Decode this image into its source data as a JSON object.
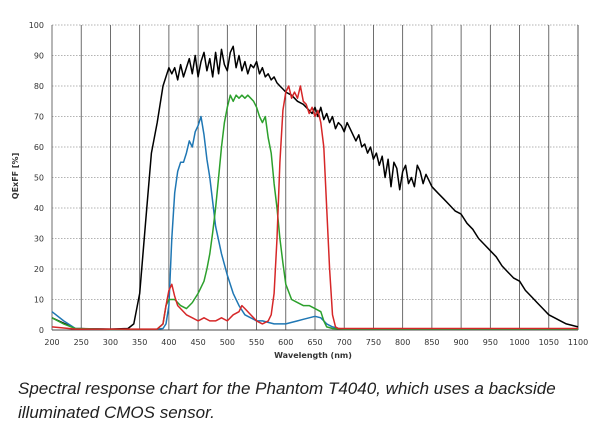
{
  "chart_data": {
    "type": "line",
    "title": "",
    "xlabel": "Wavelength (nm)",
    "ylabel": "QExFF [%]",
    "xlim": [
      200,
      1100
    ],
    "ylim": [
      0,
      100
    ],
    "x_ticks": [
      "200",
      "250",
      "300",
      "350",
      "400",
      "450",
      "500",
      "550",
      "600",
      "650",
      "700",
      "750",
      "800",
      "850",
      "900",
      "950",
      "1000",
      "1050",
      "1100"
    ],
    "y_ticks": [
      "0",
      "10",
      "20",
      "30",
      "40",
      "50",
      "60",
      "70",
      "80",
      "90",
      "100"
    ],
    "grid": true,
    "legend": "none",
    "series": [
      {
        "color": "#000000",
        "points": [
          [
            200,
            4
          ],
          [
            240,
            0.5
          ],
          [
            300,
            0.3
          ],
          [
            330,
            0.5
          ],
          [
            340,
            2
          ],
          [
            350,
            12
          ],
          [
            360,
            35
          ],
          [
            370,
            58
          ],
          [
            380,
            68
          ],
          [
            390,
            80
          ],
          [
            400,
            86
          ],
          [
            405,
            84
          ],
          [
            410,
            86
          ],
          [
            415,
            82
          ],
          [
            420,
            87
          ],
          [
            425,
            83
          ],
          [
            430,
            86
          ],
          [
            435,
            89
          ],
          [
            440,
            84
          ],
          [
            445,
            90
          ],
          [
            450,
            83
          ],
          [
            455,
            88
          ],
          [
            460,
            91
          ],
          [
            465,
            85
          ],
          [
            470,
            89
          ],
          [
            475,
            83
          ],
          [
            480,
            91
          ],
          [
            485,
            84
          ],
          [
            490,
            92
          ],
          [
            495,
            87
          ],
          [
            500,
            85
          ],
          [
            505,
            91
          ],
          [
            510,
            93
          ],
          [
            515,
            86
          ],
          [
            520,
            90
          ],
          [
            525,
            85
          ],
          [
            530,
            88
          ],
          [
            535,
            84
          ],
          [
            540,
            87
          ],
          [
            545,
            86
          ],
          [
            550,
            88
          ],
          [
            555,
            84
          ],
          [
            560,
            86
          ],
          [
            565,
            83
          ],
          [
            570,
            84
          ],
          [
            575,
            82
          ],
          [
            580,
            83
          ],
          [
            585,
            81
          ],
          [
            590,
            80
          ],
          [
            595,
            79
          ],
          [
            600,
            78
          ],
          [
            610,
            77
          ],
          [
            620,
            75
          ],
          [
            630,
            74
          ],
          [
            640,
            72
          ],
          [
            645,
            71
          ],
          [
            650,
            73
          ],
          [
            655,
            70
          ],
          [
            660,
            73
          ],
          [
            665,
            69
          ],
          [
            670,
            71
          ],
          [
            675,
            68
          ],
          [
            680,
            70
          ],
          [
            685,
            66
          ],
          [
            690,
            68
          ],
          [
            695,
            67
          ],
          [
            700,
            65
          ],
          [
            705,
            68
          ],
          [
            710,
            66
          ],
          [
            720,
            62
          ],
          [
            725,
            64
          ],
          [
            730,
            60
          ],
          [
            735,
            61
          ],
          [
            740,
            58
          ],
          [
            745,
            60
          ],
          [
            750,
            56
          ],
          [
            755,
            58
          ],
          [
            760,
            54
          ],
          [
            765,
            57
          ],
          [
            770,
            50
          ],
          [
            775,
            56
          ],
          [
            780,
            47
          ],
          [
            785,
            55
          ],
          [
            790,
            53
          ],
          [
            795,
            46
          ],
          [
            800,
            52
          ],
          [
            805,
            54
          ],
          [
            810,
            48
          ],
          [
            815,
            50
          ],
          [
            820,
            47
          ],
          [
            825,
            54
          ],
          [
            830,
            52
          ],
          [
            835,
            48
          ],
          [
            840,
            51
          ],
          [
            845,
            49
          ],
          [
            850,
            47
          ],
          [
            860,
            45
          ],
          [
            870,
            43
          ],
          [
            880,
            41
          ],
          [
            890,
            39
          ],
          [
            900,
            38
          ],
          [
            910,
            35
          ],
          [
            920,
            33
          ],
          [
            930,
            30
          ],
          [
            940,
            28
          ],
          [
            950,
            26
          ],
          [
            960,
            24
          ],
          [
            970,
            21
          ],
          [
            980,
            19
          ],
          [
            990,
            17
          ],
          [
            1000,
            16
          ],
          [
            1010,
            13
          ],
          [
            1020,
            11
          ],
          [
            1030,
            9
          ],
          [
            1040,
            7
          ],
          [
            1050,
            5
          ],
          [
            1060,
            4
          ],
          [
            1070,
            3
          ],
          [
            1080,
            2
          ],
          [
            1090,
            1.5
          ],
          [
            1100,
            1
          ]
        ]
      },
      {
        "color": "#1f77b4",
        "points": [
          [
            200,
            6
          ],
          [
            220,
            3
          ],
          [
            240,
            0.5
          ],
          [
            300,
            0.2
          ],
          [
            380,
            0.3
          ],
          [
            390,
            0.5
          ],
          [
            395,
            2
          ],
          [
            400,
            8
          ],
          [
            405,
            30
          ],
          [
            410,
            45
          ],
          [
            415,
            52
          ],
          [
            420,
            55
          ],
          [
            425,
            55
          ],
          [
            430,
            58
          ],
          [
            435,
            62
          ],
          [
            440,
            60
          ],
          [
            445,
            65
          ],
          [
            450,
            67
          ],
          [
            455,
            70
          ],
          [
            460,
            64
          ],
          [
            465,
            56
          ],
          [
            470,
            50
          ],
          [
            475,
            42
          ],
          [
            480,
            34
          ],
          [
            490,
            25
          ],
          [
            500,
            18
          ],
          [
            510,
            12
          ],
          [
            520,
            8
          ],
          [
            530,
            5
          ],
          [
            540,
            4
          ],
          [
            550,
            3
          ],
          [
            560,
            3
          ],
          [
            570,
            2.5
          ],
          [
            580,
            2
          ],
          [
            590,
            2
          ],
          [
            600,
            2
          ],
          [
            610,
            2.5
          ],
          [
            620,
            3
          ],
          [
            630,
            3.5
          ],
          [
            640,
            4
          ],
          [
            650,
            4.5
          ],
          [
            660,
            4
          ],
          [
            670,
            2
          ],
          [
            680,
            1
          ],
          [
            690,
            0.5
          ],
          [
            700,
            0.3
          ],
          [
            1100,
            0.3
          ]
        ]
      },
      {
        "color": "#2ca02c",
        "points": [
          [
            200,
            4
          ],
          [
            220,
            2
          ],
          [
            240,
            0.5
          ],
          [
            300,
            0.2
          ],
          [
            380,
            0.3
          ],
          [
            390,
            2
          ],
          [
            395,
            8
          ],
          [
            400,
            10
          ],
          [
            410,
            10
          ],
          [
            420,
            8
          ],
          [
            430,
            7
          ],
          [
            440,
            9
          ],
          [
            450,
            12
          ],
          [
            460,
            16
          ],
          [
            465,
            20
          ],
          [
            470,
            25
          ],
          [
            475,
            32
          ],
          [
            480,
            40
          ],
          [
            485,
            50
          ],
          [
            490,
            60
          ],
          [
            495,
            68
          ],
          [
            500,
            73
          ],
          [
            505,
            77
          ],
          [
            510,
            75
          ],
          [
            515,
            77
          ],
          [
            520,
            76
          ],
          [
            525,
            77
          ],
          [
            530,
            76
          ],
          [
            535,
            77
          ],
          [
            540,
            76
          ],
          [
            545,
            75
          ],
          [
            550,
            73
          ],
          [
            555,
            70
          ],
          [
            560,
            68
          ],
          [
            565,
            70
          ],
          [
            570,
            63
          ],
          [
            575,
            58
          ],
          [
            580,
            48
          ],
          [
            585,
            40
          ],
          [
            590,
            30
          ],
          [
            595,
            22
          ],
          [
            600,
            15
          ],
          [
            610,
            10
          ],
          [
            620,
            9
          ],
          [
            630,
            8
          ],
          [
            640,
            8
          ],
          [
            650,
            7
          ],
          [
            660,
            6
          ],
          [
            665,
            3
          ],
          [
            670,
            1
          ],
          [
            680,
            0.5
          ],
          [
            700,
            0.3
          ],
          [
            1100,
            0.3
          ]
        ]
      },
      {
        "color": "#d62728",
        "points": [
          [
            200,
            1
          ],
          [
            240,
            0.3
          ],
          [
            380,
            0.3
          ],
          [
            390,
            2
          ],
          [
            395,
            8
          ],
          [
            400,
            13
          ],
          [
            405,
            15
          ],
          [
            410,
            11
          ],
          [
            415,
            8
          ],
          [
            420,
            7
          ],
          [
            430,
            5
          ],
          [
            440,
            4
          ],
          [
            450,
            3
          ],
          [
            460,
            4
          ],
          [
            470,
            3
          ],
          [
            480,
            3
          ],
          [
            490,
            4
          ],
          [
            500,
            3
          ],
          [
            510,
            5
          ],
          [
            520,
            6
          ],
          [
            525,
            8
          ],
          [
            530,
            7
          ],
          [
            540,
            5
          ],
          [
            550,
            3
          ],
          [
            560,
            2
          ],
          [
            570,
            3
          ],
          [
            575,
            5
          ],
          [
            580,
            12
          ],
          [
            585,
            30
          ],
          [
            590,
            55
          ],
          [
            595,
            72
          ],
          [
            600,
            78
          ],
          [
            605,
            80
          ],
          [
            610,
            76
          ],
          [
            615,
            78
          ],
          [
            620,
            76
          ],
          [
            625,
            80
          ],
          [
            630,
            75
          ],
          [
            635,
            74
          ],
          [
            640,
            71
          ],
          [
            645,
            73
          ],
          [
            650,
            70
          ],
          [
            655,
            72
          ],
          [
            660,
            68
          ],
          [
            665,
            60
          ],
          [
            670,
            40
          ],
          [
            675,
            20
          ],
          [
            680,
            5
          ],
          [
            685,
            1
          ],
          [
            690,
            0.5
          ],
          [
            700,
            0.5
          ],
          [
            1100,
            0.5
          ]
        ]
      }
    ]
  },
  "caption": "Spectral response chart for the Phantom T4040, which uses a backside illuminated CMOS sensor."
}
